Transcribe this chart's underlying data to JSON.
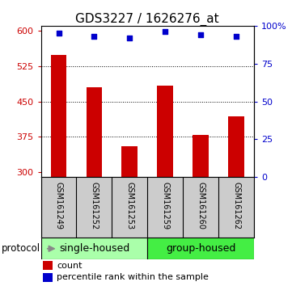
{
  "title": "GDS3227 / 1626276_at",
  "samples": [
    "GSM161249",
    "GSM161252",
    "GSM161253",
    "GSM161259",
    "GSM161260",
    "GSM161262"
  ],
  "counts": [
    548,
    480,
    355,
    483,
    380,
    418
  ],
  "percentiles": [
    95,
    93,
    92,
    96,
    94,
    93
  ],
  "ylim_left": [
    290,
    610
  ],
  "ylim_right": [
    0,
    100
  ],
  "yticks_left": [
    300,
    375,
    450,
    525,
    600
  ],
  "yticks_right": [
    0,
    25,
    50,
    75,
    100
  ],
  "ytick_labels_right": [
    "0",
    "25",
    "50",
    "75",
    "100%"
  ],
  "bar_color": "#cc0000",
  "dot_color": "#0000cc",
  "bar_bottom": 290,
  "groups": [
    {
      "label": "single-housed",
      "indices": [
        0,
        1,
        2
      ],
      "color": "#aaffaa"
    },
    {
      "label": "group-housed",
      "indices": [
        3,
        4,
        5
      ],
      "color": "#44ee44"
    }
  ],
  "protocol_label": "protocol",
  "legend_count_label": "count",
  "legend_percentile_label": "percentile rank within the sample",
  "title_fontsize": 11,
  "tick_fontsize": 8,
  "legend_fontsize": 8,
  "group_label_fontsize": 9,
  "sample_label_fontsize": 7,
  "background_color": "#ffffff",
  "plot_bg_color": "#ffffff",
  "xlabel_area_color": "#cccccc",
  "grid_color": "#000000"
}
